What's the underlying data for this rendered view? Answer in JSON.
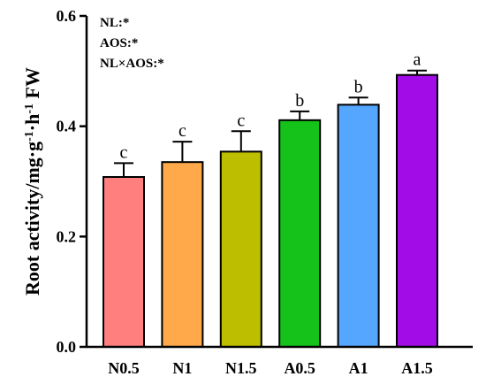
{
  "chart_data": {
    "type": "bar",
    "categories": [
      "N0.5",
      "N1",
      "N1.5",
      "A0.5",
      "A1",
      "A1.5"
    ],
    "values": [
      0.308,
      0.335,
      0.354,
      0.411,
      0.439,
      0.493
    ],
    "errors": [
      0.025,
      0.037,
      0.037,
      0.016,
      0.013,
      0.008
    ],
    "significance": [
      "c",
      "c",
      "c",
      "b",
      "b",
      "a"
    ],
    "colors": [
      "#FF7F7F",
      "#FFA94A",
      "#BDBE00",
      "#15C21A",
      "#55A6FF",
      "#A20CE6"
    ],
    "ylim": [
      0,
      0.6
    ],
    "yticks": [
      0.0,
      0.2,
      0.4,
      0.6
    ],
    "ytick_labels": [
      "0.0",
      "0.2",
      "0.4",
      "0.6"
    ],
    "xlabel": "",
    "ylabel": {
      "main": "Root activity/mg·g",
      "sup1": "-1",
      "mid": "·h",
      "sup2": "-1",
      "end": " FW"
    },
    "annotations": [
      "NL:*",
      "AOS:*",
      "NL×AOS:*"
    ]
  }
}
